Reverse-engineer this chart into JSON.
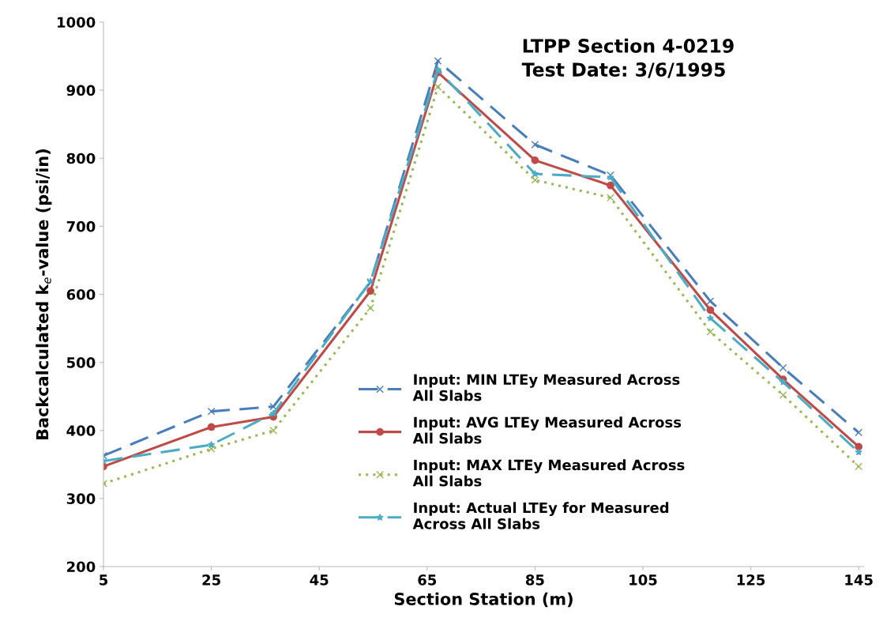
{
  "chart_data": {
    "type": "line",
    "title": "LTPP Section 4-0219\nTest Date: 3/6/1995",
    "xlabel": "Section Station (m)",
    "ylabel": "Backcalculated k$_{e}$-value (psi/in)",
    "x": [
      5,
      25,
      36.5,
      54.5,
      67,
      85,
      99,
      117.5,
      131,
      145
    ],
    "series": [
      {
        "name": "Input: MIN LTEy Measured Across\nAll Slabs",
        "color": "#4a7ebb",
        "line_style": "dashed",
        "marker": "cross",
        "values": [
          363,
          428,
          435,
          618,
          943,
          820,
          775,
          590,
          492,
          397
        ]
      },
      {
        "name": "Input: AVG LTEy Measured Across\nAll Slabs",
        "color": "#be4b48",
        "line_style": "solid",
        "marker": "circle",
        "values": [
          347,
          405,
          420,
          605,
          926,
          797,
          760,
          577,
          475,
          376
        ]
      },
      {
        "name": "Input: MAX LTEy Measured Across\nAll Slabs",
        "color": "#98b954",
        "line_style": "dotted",
        "marker": "cross",
        "values": [
          322,
          373,
          400,
          580,
          905,
          768,
          742,
          545,
          452,
          347
        ]
      },
      {
        "name": "Input: Actual LTEy for Measured\nAcross All Slabs",
        "color": "#4bacc6",
        "line_style": "dashed",
        "marker": "star",
        "values": [
          355,
          379,
          425,
          619,
          930,
          777,
          772,
          565,
          471,
          368
        ]
      }
    ],
    "xlim": [
      5,
      146
    ],
    "xticks": [
      5,
      25,
      45,
      65,
      85,
      105,
      125,
      145
    ],
    "ylim": [
      200,
      1000
    ],
    "yticks": [
      200,
      300,
      400,
      500,
      600,
      700,
      800,
      900,
      1000
    ],
    "grid": false,
    "legend": "bottom"
  }
}
